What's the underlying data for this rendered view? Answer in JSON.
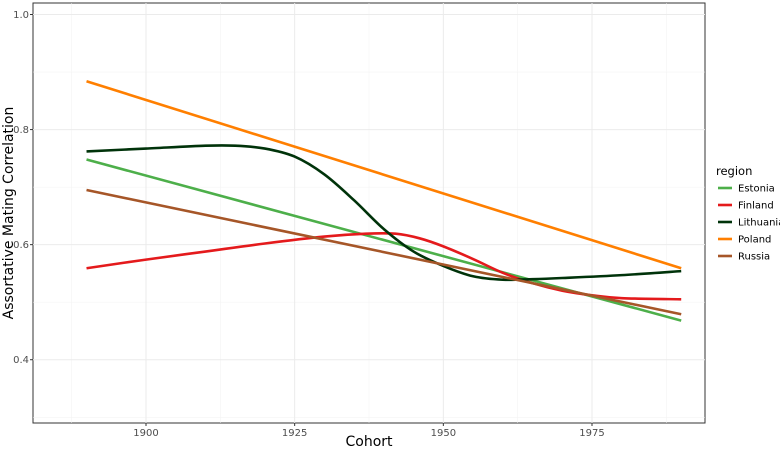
{
  "chart_data": {
    "type": "line",
    "xlabel": "Cohort",
    "ylabel": "Assortative Mating Correlation",
    "xlim": [
      1881,
      1994
    ],
    "ylim": [
      0.29,
      1.02
    ],
    "x_ticks": [
      1900,
      1925,
      1950,
      1975
    ],
    "y_ticks": [
      0.4,
      0.6,
      0.8,
      1.0
    ],
    "x_tick_labels": [
      "1900",
      "1925",
      "1950",
      "1975"
    ],
    "y_tick_labels": [
      "0.4",
      "0.6",
      "0.8",
      "1.0"
    ],
    "grid": true,
    "legend_title": "region",
    "legend_position": "right",
    "series": [
      {
        "name": "Estonia",
        "color": "#4daf4a",
        "x": [
          1890,
          1990
        ],
        "y": [
          0.748,
          0.468
        ]
      },
      {
        "name": "Finland",
        "color": "#e41a1c",
        "x": [
          1890,
          1900,
          1910,
          1920,
          1930,
          1937,
          1942,
          1946,
          1950,
          1955,
          1960,
          1965,
          1970,
          1975,
          1980,
          1990
        ],
        "y": [
          0.559,
          0.574,
          0.588,
          0.602,
          0.614,
          0.619,
          0.619,
          0.611,
          0.597,
          0.575,
          0.551,
          0.533,
          0.52,
          0.512,
          0.507,
          0.505
        ]
      },
      {
        "name": "Lithuania",
        "color": "#00330a",
        "x": [
          1890,
          1900,
          1910,
          1915,
          1920,
          1925,
          1930,
          1935,
          1940,
          1945,
          1950,
          1955,
          1960,
          1965,
          1970,
          1980,
          1990
        ],
        "y": [
          0.762,
          0.767,
          0.772,
          0.772,
          0.767,
          0.753,
          0.722,
          0.677,
          0.627,
          0.588,
          0.563,
          0.545,
          0.539,
          0.54,
          0.542,
          0.547,
          0.554
        ]
      },
      {
        "name": "Poland",
        "color": "#ff7f00",
        "x": [
          1890,
          1990
        ],
        "y": [
          0.884,
          0.559
        ]
      },
      {
        "name": "Russia",
        "color": "#a65628",
        "x": [
          1890,
          1990
        ],
        "y": [
          0.695,
          0.479
        ]
      }
    ]
  }
}
